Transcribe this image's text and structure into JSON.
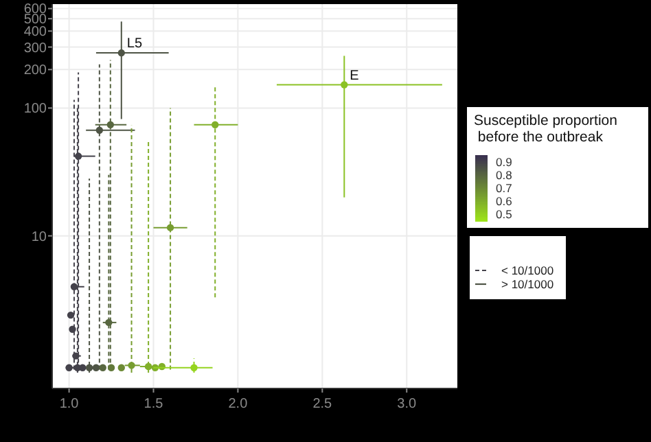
{
  "chart_data": {
    "type": "scatter",
    "log": "y",
    "grid": true,
    "legend": "right",
    "marker": "circle",
    "xlim": [
      0.9,
      3.3
    ],
    "ylim": [
      0.64,
      650
    ],
    "xticks": [
      {
        "value": 1,
        "label": "1.0"
      },
      1.5,
      {
        "value": 2,
        "label": "2.0"
      },
      2.5,
      {
        "value": 3,
        "label": "3.0"
      }
    ],
    "yticks": [
      10,
      100,
      200,
      300,
      400,
      500,
      600
    ],
    "clabel": "Susceptible proportion\n before the outbreak",
    "clim": [
      0.45,
      0.95
    ],
    "cticks": [
      0.5,
      0.6,
      0.7,
      0.8,
      0.9
    ],
    "annotations": [
      {
        "text": "L5",
        "x": 1.31,
        "y": 270
      },
      {
        "text": "E",
        "x": 2.63,
        "y": 152
      }
    ],
    "series": [
      {
        "name": "< 10/1000",
        "line_style": "dashed",
        "x": [
          1.055,
          1.18,
          1.245,
          1.865,
          1.6,
          1.03,
          1.01,
          1.02,
          1.235,
          1.04,
          1.0,
          1.05,
          1.08,
          1.12,
          1.16,
          1.2,
          1.25,
          1.31,
          1.37,
          1.47,
          1.51,
          1.55,
          1.74
        ],
        "values": [
          42,
          67,
          74,
          74,
          11.6,
          4.0,
          2.4,
          1.86,
          2.1,
          1.15,
          0.93,
          0.93,
          0.93,
          0.93,
          0.93,
          0.93,
          0.93,
          0.93,
          0.97,
          0.95,
          0.93,
          0.95,
          0.93
        ],
        "cvalues": [
          0.9,
          0.85,
          0.8,
          0.6,
          0.65,
          0.9,
          0.9,
          0.9,
          0.8,
          0.9,
          0.9,
          0.9,
          0.9,
          0.85,
          0.85,
          0.8,
          0.75,
          0.7,
          0.65,
          0.6,
          0.6,
          0.6,
          0.5
        ],
        "colors": [
          "#44424b",
          "#4e5445",
          "#586740",
          "#81af2a",
          "#779d30",
          "#44424b",
          "#44424b",
          "#44424b",
          "#586740",
          "#44424b",
          "#44424b",
          "#44424b",
          "#44424b",
          "#4e5445",
          "#4e5445",
          "#586740",
          "#62793a",
          "#6d8b35",
          "#779d30",
          "#81af2a",
          "#81af2a",
          "#81af2a",
          "#95d41f"
        ],
        "xerrors": [
          [
            1.03,
            1.155
          ],
          [
            1.1,
            1.39
          ],
          [
            1.155,
            1.34
          ],
          [
            1.74,
            2.0
          ],
          [
            1.5,
            1.7
          ],
          [
            1.02,
            1.09
          ],
          null,
          null,
          [
            1.2,
            1.28
          ],
          [
            1.02,
            1.07
          ],
          [
            0.98,
            1.03
          ],
          [
            1.02,
            1.1
          ],
          [
            1.04,
            1.12
          ],
          null,
          null,
          null,
          null,
          null,
          [
            1.33,
            1.42
          ],
          [
            1.42,
            1.52
          ],
          [
            1.45,
            1.57
          ],
          null,
          [
            1.5,
            1.85
          ]
        ],
        "errors": [
          [
            0.9,
            190
          ],
          [
            0.9,
            220
          ],
          [
            0.9,
            237
          ],
          [
            3.3,
            152
          ],
          [
            0.9,
            100
          ],
          [
            0.9,
            116
          ],
          null,
          null,
          [
            0.9,
            30
          ],
          null,
          null,
          [
            0.85,
            100
          ],
          null,
          [
            0.85,
            28
          ],
          null,
          null,
          null,
          null,
          [
            0.85,
            73
          ],
          [
            0.85,
            55
          ],
          null,
          null,
          [
            0.85,
            1.1
          ]
        ]
      },
      {
        "name": "> 10/1000",
        "line_style": "solid",
        "x": [
          1.31,
          2.63
        ],
        "values": [
          270,
          152
        ],
        "cvalues": [
          0.85,
          0.55
        ],
        "colors": [
          "#4e5445",
          "#8bc225"
        ],
        "xerrors": [
          [
            1.16,
            1.59
          ],
          [
            2.23,
            3.21
          ]
        ],
        "errors": [
          [
            82,
            475
          ],
          [
            20,
            256
          ]
        ]
      }
    ]
  }
}
